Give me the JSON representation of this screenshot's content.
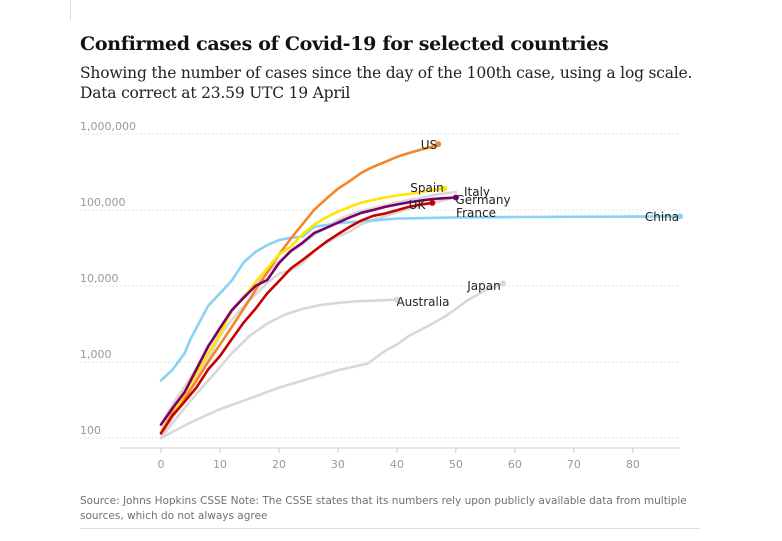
{
  "header": {
    "title": "Confirmed cases of Covid-19 for selected countries",
    "subtitle": "Showing the number of cases since the day of the 100th case, using a log scale. Data correct at 23.59 UTC 19 April"
  },
  "footer": {
    "source": "Source: Johns Hopkins CSSE Note: The CSSE states that its numbers rely upon publicly available data from multiple sources, which do not always agree"
  },
  "chart_data": {
    "type": "line",
    "y_scale": "log",
    "ylim": [
      100,
      1000000
    ],
    "xlim": [
      0,
      88
    ],
    "y_ticks": [
      100,
      1000,
      10000,
      100000,
      1000000
    ],
    "y_tick_labels": [
      "100",
      "1,000",
      "10,000",
      "100,000",
      "1,000,000"
    ],
    "x_ticks": [
      0,
      10,
      20,
      30,
      40,
      50,
      60,
      70,
      80
    ],
    "x_tick_labels": [
      "0",
      "10",
      "20",
      "30",
      "40",
      "50",
      "60",
      "70",
      "80"
    ],
    "grid": "horizontal",
    "legend": "none (series labelled at line ends)",
    "series": [
      {
        "name": "China",
        "color": "#89d2f5",
        "endpoint": true,
        "x": [
          0,
          2,
          4,
          5,
          6,
          8,
          10,
          12,
          14,
          16,
          18,
          20,
          22,
          24,
          26,
          30,
          40,
          50,
          60,
          70,
          80,
          88
        ],
        "y": [
          570,
          800,
          1300,
          2000,
          2800,
          5500,
          8000,
          11800,
          20400,
          28000,
          34500,
          40200,
          43100,
          44700,
          60000,
          67000,
          77000,
          80000,
          81000,
          81500,
          82000,
          82700
        ]
      },
      {
        "name": "US",
        "color": "#f4862b",
        "endpoint": true,
        "x": [
          0,
          2,
          4,
          6,
          8,
          10,
          12,
          14,
          16,
          18,
          20,
          22,
          24,
          26,
          28,
          30,
          32,
          34,
          36,
          38,
          40,
          42,
          44,
          46,
          47
        ],
        "y": [
          120,
          220,
          330,
          570,
          1000,
          1700,
          2900,
          5000,
          8800,
          15000,
          26000,
          42000,
          65000,
          101000,
          140000,
          190000,
          240000,
          310000,
          370000,
          430000,
          500000,
          560000,
          620000,
          680000,
          735000
        ]
      },
      {
        "name": "Spain",
        "color": "#ffe500",
        "endpoint": true,
        "x": [
          0,
          2,
          4,
          6,
          8,
          10,
          12,
          14,
          16,
          18,
          20,
          22,
          24,
          26,
          28,
          30,
          32,
          34,
          36,
          38,
          40,
          42,
          44,
          46,
          48
        ],
        "y": [
          120,
          200,
          380,
          700,
          1300,
          2300,
          4800,
          7000,
          11200,
          17000,
          26000,
          33000,
          48000,
          64000,
          80000,
          95000,
          110000,
          125000,
          136000,
          146000,
          155000,
          163000,
          172000,
          182000,
          192000
        ]
      },
      {
        "name": "Italy",
        "color": "#d8d8d8",
        "endpoint": false,
        "x": [
          0,
          2,
          4,
          6,
          8,
          10,
          12,
          14,
          16,
          18,
          20,
          22,
          24,
          26,
          28,
          30,
          32,
          34,
          36,
          38,
          40,
          42,
          44,
          46,
          48,
          50
        ],
        "y": [
          150,
          280,
          470,
          830,
          1700,
          2500,
          4600,
          7400,
          10100,
          15100,
          21100,
          27900,
          35700,
          47000,
          59000,
          74000,
          86500,
          97700,
          105800,
          115200,
          124600,
          135600,
          143600,
          156400,
          165100,
          172400
        ]
      },
      {
        "name": "Germany",
        "color": "#7d0068",
        "endpoint": true,
        "x": [
          0,
          2,
          4,
          6,
          8,
          10,
          12,
          14,
          16,
          18,
          20,
          22,
          24,
          26,
          28,
          30,
          32,
          34,
          36,
          38,
          40,
          42,
          44,
          46,
          48,
          50
        ],
        "y": [
          150,
          250,
          400,
          800,
          1600,
          2800,
          4800,
          7000,
          10000,
          12000,
          20000,
          29000,
          37000,
          50000,
          58000,
          68000,
          80000,
          92000,
          100000,
          110000,
          118000,
          126000,
          133000,
          139000,
          143000,
          146000
        ]
      },
      {
        "name": "UK",
        "color": "#c70000",
        "endpoint": true,
        "x": [
          0,
          2,
          4,
          6,
          8,
          10,
          12,
          14,
          16,
          18,
          20,
          22,
          24,
          26,
          28,
          30,
          32,
          34,
          36,
          38,
          40,
          42,
          44,
          46
        ],
        "y": [
          115,
          200,
          300,
          460,
          800,
          1200,
          2000,
          3300,
          5000,
          8000,
          11600,
          17000,
          22000,
          29000,
          38000,
          48000,
          60000,
          73000,
          84000,
          90000,
          99000,
          110000,
          118000,
          124000
        ]
      },
      {
        "name": "France",
        "color": "#d8d8d8",
        "endpoint": false,
        "x": [
          0,
          2,
          4,
          6,
          8,
          10,
          12,
          14,
          16,
          18,
          20,
          22,
          24,
          26,
          28,
          30,
          32,
          34,
          36,
          38,
          40,
          42,
          44,
          46,
          48,
          50
        ],
        "y": [
          100,
          190,
          300,
          600,
          1100,
          2200,
          3600,
          5400,
          7700,
          11000,
          14500,
          16000,
          20000,
          29000,
          37000,
          45000,
          52000,
          65000,
          74000,
          83000,
          93000,
          104000,
          114000,
          124000,
          134000,
          150000
        ]
      },
      {
        "name": "Australia",
        "color": "#d8d8d8",
        "endpoint": true,
        "x": [
          0,
          3,
          6,
          9,
          12,
          15,
          18,
          21,
          24,
          27,
          30,
          33,
          36,
          40
        ],
        "y": [
          100,
          200,
          380,
          700,
          1300,
          2200,
          3200,
          4200,
          5000,
          5600,
          6000,
          6300,
          6400,
          6600
        ]
      },
      {
        "name": "Japan",
        "color": "#d8d8d8",
        "endpoint": true,
        "x": [
          0,
          5,
          10,
          15,
          20,
          25,
          30,
          35,
          38,
          40,
          42,
          45,
          48,
          50,
          52,
          55,
          58
        ],
        "y": [
          100,
          160,
          240,
          330,
          460,
          600,
          780,
          950,
          1400,
          1700,
          2200,
          2900,
          3900,
          5000,
          6500,
          8800,
          10800
        ]
      }
    ],
    "series_labels": [
      "US",
      "Spain",
      "Italy",
      "Germany",
      "UK",
      "France",
      "China",
      "Japan",
      "Australia"
    ]
  }
}
